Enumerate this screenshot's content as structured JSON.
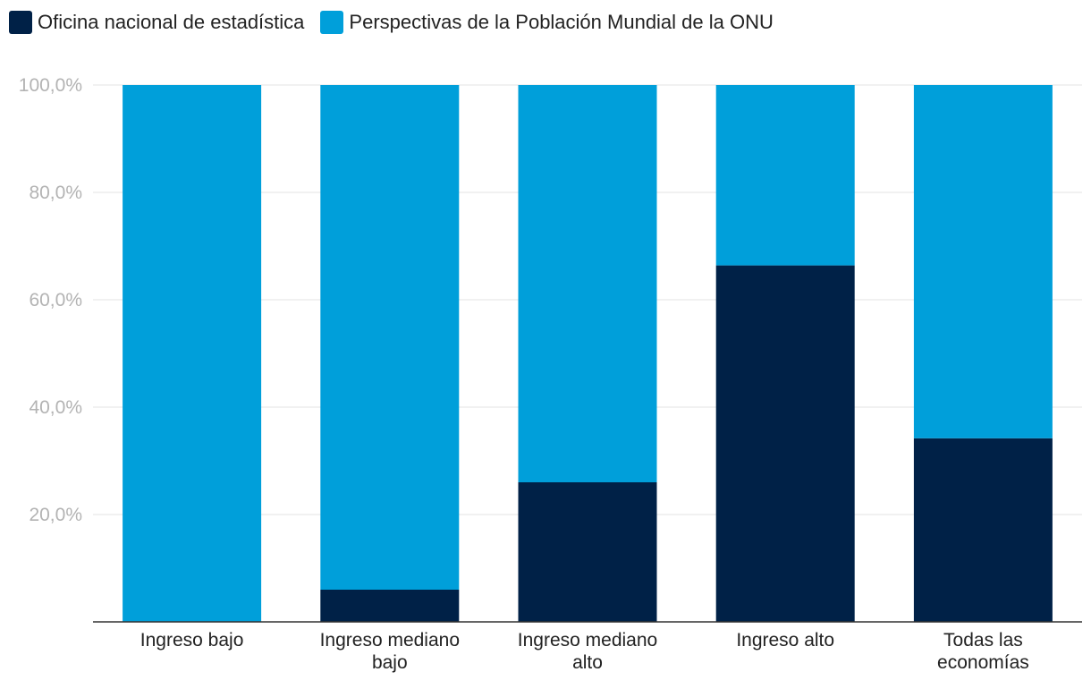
{
  "chart_data": {
    "type": "bar",
    "stacked": true,
    "categories": [
      [
        "Ingreso bajo"
      ],
      [
        "Ingreso mediano",
        "bajo"
      ],
      [
        "Ingreso mediano",
        "alto"
      ],
      [
        "Ingreso alto"
      ],
      [
        "Todas las",
        "economías"
      ]
    ],
    "series": [
      {
        "name": "Oficina nacional de estadística",
        "color": "#002147",
        "values": [
          0,
          6,
          26,
          66.4,
          34.2
        ]
      },
      {
        "name": "Perspectivas de la Población Mundial de la ONU",
        "color": "#009fda",
        "values": [
          100,
          94,
          74,
          33.6,
          65.8
        ]
      }
    ],
    "ylim": [
      0,
      100
    ],
    "yticks": [
      20,
      40,
      60,
      80,
      100
    ],
    "ytick_labels": [
      "20,0%",
      "40,0%",
      "60,0%",
      "80,0%",
      "100,0%"
    ],
    "legend_position": "top-left",
    "grid": true
  }
}
